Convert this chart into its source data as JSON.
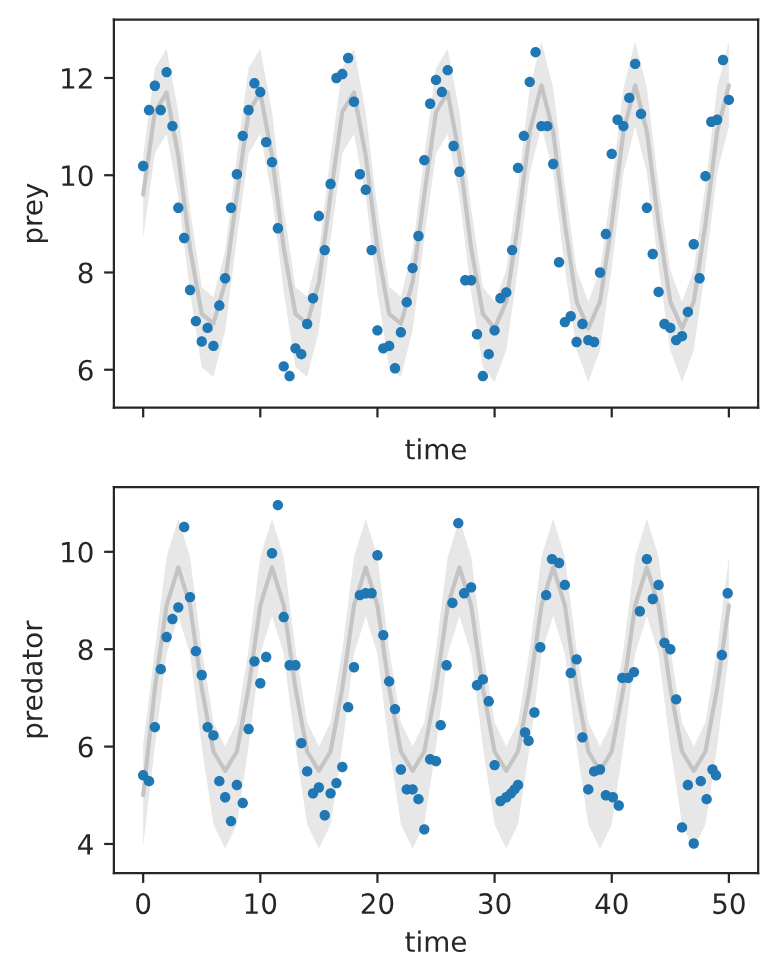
{
  "chart_data": [
    {
      "type": "scatter",
      "xlabel": "time",
      "ylabel": "prey",
      "xlim": [
        -2.5,
        52.5
      ],
      "ylim": [
        5.22,
        13.2
      ],
      "xticks": [
        0,
        10,
        20,
        30,
        40,
        50
      ],
      "yticks": [
        6,
        8,
        10,
        12
      ],
      "tick_labels": "y",
      "grid": false,
      "series": [
        {
          "type": "line",
          "color": "#c4c4c4",
          "line_style": "solid",
          "x": [
            0,
            1,
            2,
            3,
            4,
            5,
            6,
            7,
            8,
            9,
            10,
            11,
            12,
            13,
            14,
            15,
            16,
            17,
            18,
            19,
            20,
            21,
            22,
            23,
            24,
            25,
            26,
            27,
            28,
            29,
            30,
            31,
            32,
            33,
            34,
            35,
            36,
            37,
            38,
            39,
            40,
            41,
            42,
            43,
            44,
            45,
            46,
            47,
            48,
            49,
            50
          ],
          "values": [
            9.6,
            11.3,
            11.7,
            10.4,
            8.5,
            7.15,
            6.95,
            7.8,
            9.6,
            11.3,
            11.7,
            10.4,
            8.5,
            7.15,
            6.95,
            7.8,
            9.6,
            11.3,
            11.7,
            10.4,
            8.5,
            7.15,
            6.95,
            7.8,
            9.6,
            11.3,
            11.7,
            10.4,
            8.5,
            7.15,
            6.85,
            7.4,
            9.0,
            10.9,
            11.85,
            10.9,
            9.0,
            7.4,
            6.85,
            7.4,
            9.0,
            10.9,
            11.85,
            10.9,
            9.0,
            7.4,
            6.85,
            7.4,
            9.0,
            10.9,
            11.85
          ],
          "upper": [
            10.4,
            12.2,
            12.6,
            11.3,
            9.3,
            7.7,
            7.5,
            8.45,
            10.4,
            12.2,
            12.6,
            11.3,
            9.3,
            7.7,
            7.5,
            8.45,
            10.4,
            12.2,
            12.6,
            11.3,
            9.3,
            7.7,
            7.5,
            8.45,
            10.4,
            12.2,
            12.6,
            11.3,
            9.3,
            7.7,
            7.4,
            8.05,
            9.8,
            11.8,
            12.75,
            11.8,
            9.8,
            8.05,
            7.4,
            8.05,
            9.8,
            11.8,
            12.75,
            11.8,
            9.8,
            8.05,
            7.4,
            8.05,
            9.8,
            11.8,
            12.75
          ],
          "lower": [
            8.7,
            10.45,
            10.85,
            9.55,
            7.6,
            6.05,
            5.85,
            6.8,
            8.7,
            10.45,
            10.85,
            9.55,
            7.6,
            6.05,
            5.85,
            6.8,
            8.7,
            10.45,
            10.85,
            9.55,
            7.6,
            6.05,
            5.85,
            6.8,
            8.7,
            10.45,
            10.85,
            9.55,
            7.6,
            6.05,
            5.75,
            6.4,
            8.1,
            10.05,
            11.0,
            10.05,
            8.1,
            6.4,
            5.75,
            6.4,
            8.1,
            10.05,
            11.0,
            10.05,
            8.1,
            6.4,
            5.75,
            6.4,
            8.1,
            10.05,
            11.0
          ]
        },
        {
          "marker": "circle",
          "color": "#1f77b4",
          "x": [
            0,
            0.5,
            1,
            1.5,
            2,
            2.5,
            3,
            3.5,
            4,
            4.5,
            5,
            5.5,
            6,
            6.5,
            7,
            7.5,
            8,
            8.5,
            9,
            9.5,
            10,
            10.5,
            11,
            11.5,
            12,
            12.5,
            13,
            13.5,
            14,
            14.5,
            15,
            15.5,
            16,
            16.5,
            17,
            17.5,
            18,
            18.5,
            19,
            19.5,
            20,
            20.5,
            21,
            21.5,
            22,
            22.5,
            23,
            23.5,
            24,
            24.5,
            25,
            25.5,
            26,
            26.5,
            27,
            27.5,
            28,
            28.5,
            29,
            29.5,
            30,
            30.5,
            31,
            31.5,
            32,
            32.5,
            33,
            33.5,
            34,
            34.5,
            35,
            35.5,
            36,
            36.5,
            37,
            37.5,
            38,
            38.5,
            39,
            39.5,
            40,
            40.5,
            41,
            41.5,
            42,
            42.5,
            43,
            43.5,
            44,
            44.5,
            45,
            45.5,
            46,
            46.5,
            47,
            47.5,
            48,
            48.5,
            49,
            49.5,
            50
          ],
          "values": [
            10.19,
            11.34,
            11.84,
            11.34,
            12.12,
            11.01,
            9.33,
            8.71,
            7.64,
            7.0,
            6.58,
            6.86,
            6.49,
            7.32,
            7.88,
            9.33,
            10.02,
            10.81,
            11.34,
            11.89,
            11.71,
            10.68,
            10.27,
            8.91,
            6.07,
            5.87,
            6.44,
            6.32,
            6.94,
            7.47,
            9.16,
            8.46,
            9.82,
            12.0,
            12.08,
            12.41,
            11.51,
            10.02,
            9.7,
            8.46,
            6.81,
            6.44,
            6.49,
            6.03,
            6.77,
            7.39,
            8.09,
            8.75,
            10.31,
            11.47,
            11.96,
            11.71,
            12.16,
            10.6,
            10.07,
            7.84,
            7.84,
            6.73,
            5.87,
            6.32,
            6.81,
            7.47,
            7.59,
            8.46,
            10.15,
            10.81,
            11.92,
            12.53,
            11.01,
            11.01,
            10.23,
            8.21,
            6.98,
            7.1,
            6.57,
            6.94,
            6.61,
            6.57,
            8.0,
            8.79,
            10.44,
            11.14,
            11.01,
            11.59,
            12.29,
            11.26,
            9.33,
            8.38,
            7.6,
            6.94,
            6.86,
            6.61,
            6.69,
            7.19,
            8.58,
            7.88,
            9.98,
            11.1,
            11.14,
            12.37,
            11.55
          ]
        }
      ]
    },
    {
      "type": "scatter",
      "xlabel": "time",
      "ylabel": "predator",
      "xlim": [
        -2.5,
        52.5
      ],
      "ylim": [
        3.4,
        11.33
      ],
      "xticks": [
        0,
        10,
        20,
        30,
        40,
        50
      ],
      "yticks": [
        4,
        6,
        8,
        10
      ],
      "grid": false,
      "series": [
        {
          "type": "line",
          "color": "#c4c4c4",
          "line_style": "solid",
          "x": [
            0,
            1,
            2,
            3,
            4,
            5,
            6,
            7,
            8,
            9,
            10,
            11,
            12,
            13,
            14,
            15,
            16,
            17,
            18,
            19,
            20,
            21,
            22,
            23,
            24,
            25,
            26,
            27,
            28,
            29,
            30,
            31,
            32,
            33,
            34,
            35,
            36,
            37,
            38,
            39,
            40,
            41,
            42,
            43,
            44,
            45,
            46,
            47,
            48,
            49,
            50
          ],
          "values": [
            5.0,
            7.2,
            8.9,
            9.68,
            8.9,
            7.2,
            5.9,
            5.5,
            5.9,
            7.2,
            8.9,
            9.68,
            8.9,
            7.2,
            5.9,
            5.5,
            5.9,
            7.2,
            8.9,
            9.68,
            8.9,
            7.2,
            5.9,
            5.5,
            5.9,
            7.2,
            8.9,
            9.68,
            8.9,
            7.2,
            5.9,
            5.5,
            5.9,
            7.2,
            8.9,
            9.68,
            8.9,
            7.2,
            5.9,
            5.5,
            5.9,
            7.2,
            8.9,
            9.68,
            8.9,
            7.2,
            5.9,
            5.5,
            5.9,
            7.2,
            8.9
          ],
          "upper": [
            6.05,
            8.0,
            9.9,
            10.68,
            9.9,
            8.0,
            6.5,
            6.0,
            6.5,
            8.0,
            9.9,
            10.68,
            9.9,
            8.0,
            6.5,
            6.0,
            6.5,
            8.0,
            9.9,
            10.68,
            9.9,
            8.0,
            6.5,
            6.0,
            6.5,
            8.0,
            9.9,
            10.68,
            9.9,
            8.0,
            6.5,
            6.0,
            6.5,
            8.0,
            9.9,
            10.68,
            9.9,
            8.0,
            6.5,
            6.0,
            6.5,
            8.0,
            9.9,
            10.68,
            9.9,
            8.0,
            6.5,
            6.0,
            6.5,
            8.0,
            9.9
          ],
          "lower": [
            3.95,
            6.0,
            7.9,
            8.68,
            7.9,
            6.0,
            4.4,
            3.9,
            4.4,
            6.0,
            7.9,
            8.68,
            7.9,
            6.0,
            4.4,
            3.9,
            4.4,
            6.0,
            7.9,
            8.68,
            7.9,
            6.0,
            4.4,
            3.9,
            4.4,
            6.0,
            7.9,
            8.68,
            7.9,
            6.0,
            4.4,
            3.9,
            4.4,
            6.0,
            7.9,
            8.68,
            7.9,
            6.0,
            4.4,
            3.9,
            4.4,
            6.0,
            7.9,
            8.68,
            7.9,
            6.0,
            4.4,
            3.9,
            4.4,
            6.0,
            7.9
          ]
        },
        {
          "marker": "circle",
          "color": "#1f77b4",
          "x": [
            0,
            0.5,
            1,
            1.5,
            2,
            2.5,
            3,
            3.5,
            4,
            4.5,
            5,
            5.5,
            6,
            6.5,
            7,
            7.5,
            8,
            8.5,
            9,
            9.5,
            10,
            10.5,
            11,
            11.5,
            12,
            12.5,
            13,
            13.5,
            14,
            14.5,
            15,
            15.5,
            16,
            16.5,
            17,
            17.5,
            18,
            18.5,
            19,
            19.5,
            20,
            20.5,
            21,
            21.5,
            22,
            22.5,
            23,
            23.5,
            24,
            24.5,
            25,
            25.4,
            25.9,
            26.4,
            26.9,
            27.4,
            28.0,
            28.5,
            29.0,
            29.5,
            30.0,
            30.5,
            31.0,
            31.4,
            31.7,
            32.0,
            32.6,
            32.9,
            33.4,
            33.9,
            34.4,
            34.9,
            35.5,
            36.0,
            36.5,
            37.0,
            37.5,
            38.0,
            38.5,
            39.0,
            39.5,
            40.1,
            40.6,
            40.9,
            41.4,
            41.9,
            42.4,
            43.0,
            43.5,
            44.0,
            44.5,
            45.0,
            45.5,
            46.0,
            46.5,
            47.0,
            47.6,
            48.1,
            48.6,
            48.9,
            49.4,
            49.9
          ],
          "values": [
            5.41,
            5.29,
            6.4,
            7.59,
            8.25,
            8.62,
            8.86,
            10.51,
            9.07,
            7.96,
            7.47,
            6.4,
            6.23,
            5.29,
            4.96,
            4.47,
            5.21,
            4.84,
            6.36,
            7.75,
            7.3,
            7.84,
            9.97,
            10.96,
            8.66,
            7.67,
            7.67,
            6.07,
            5.49,
            5.04,
            5.16,
            4.59,
            5.04,
            5.25,
            5.58,
            6.81,
            7.63,
            9.11,
            9.15,
            9.15,
            9.93,
            8.29,
            7.34,
            6.77,
            5.53,
            5.12,
            5.12,
            4.92,
            4.3,
            5.74,
            5.7,
            6.44,
            7.67,
            8.95,
            10.59,
            9.15,
            9.27,
            7.26,
            7.38,
            6.93,
            5.62,
            4.88,
            4.96,
            5.04,
            5.12,
            5.21,
            6.29,
            6.12,
            6.7,
            8.04,
            9.11,
            9.85,
            9.77,
            9.32,
            7.51,
            7.79,
            6.19,
            5.12,
            5.49,
            5.53,
            5.0,
            4.96,
            4.79,
            7.41,
            7.41,
            7.53,
            8.78,
            9.85,
            9.03,
            9.32,
            8.13,
            8.0,
            6.97,
            4.34,
            5.21,
            4.01,
            5.29,
            4.92,
            5.53,
            5.41,
            7.88,
            9.15
          ]
        }
      ]
    }
  ]
}
